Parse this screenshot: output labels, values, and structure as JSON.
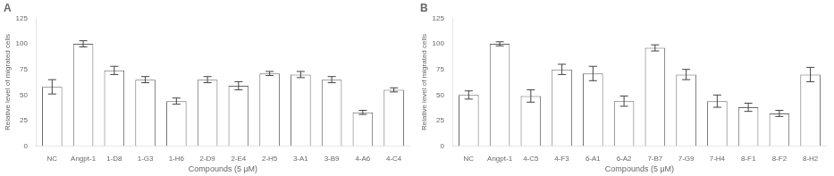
{
  "chart_data": [
    {
      "type": "bar",
      "title": "A",
      "categories": [
        "NC",
        "Angpt-1",
        "1-D8",
        "1-G3",
        "1-H6",
        "2-D9",
        "2-E4",
        "2-H5",
        "3-A1",
        "3-B9",
        "4-A6",
        "4-C4"
      ],
      "values": [
        58,
        100,
        74,
        65,
        44,
        65,
        59,
        71,
        70,
        65,
        33,
        55
      ],
      "errors": [
        7,
        3,
        4,
        3,
        3,
        3,
        4,
        2,
        3,
        3,
        2,
        2
      ],
      "xlabel": "Compounds (5 μM)",
      "ylabel": "Relative level of migrated cells",
      "ylim": [
        0,
        125
      ],
      "yticks": [
        0,
        25,
        50,
        75,
        100,
        125
      ],
      "color": "#ffffff",
      "grid": false
    },
    {
      "type": "bar",
      "title": "B",
      "categories": [
        "NC",
        "Angpt-1",
        "4-C5",
        "4-F3",
        "6-A1",
        "6-A2",
        "7-B7",
        "7-G9",
        "7-H4",
        "8-F1",
        "8-F2",
        "8-H2"
      ],
      "values": [
        50,
        100,
        49,
        75,
        71,
        44,
        96,
        70,
        44,
        38,
        32,
        70
      ],
      "errors": [
        4,
        2,
        6,
        5,
        7,
        5,
        3,
        5,
        6,
        4,
        3,
        7
      ],
      "xlabel": "Compounds (5 μM)",
      "ylabel": "Relative level of migrated cells",
      "ylim": [
        0,
        125
      ],
      "yticks": [
        0,
        25,
        50,
        75,
        100,
        125
      ],
      "color": "#ffffff",
      "grid": false
    }
  ]
}
